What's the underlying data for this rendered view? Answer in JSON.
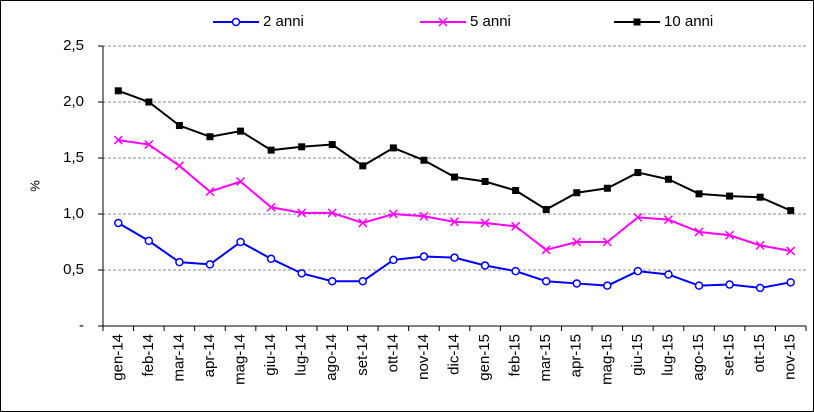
{
  "chart_data": {
    "type": "line",
    "ylabel": "%",
    "categories": [
      "gen-14",
      "feb-14",
      "mar-14",
      "apr-14",
      "mag-14",
      "giu-14",
      "lug-14",
      "ago-14",
      "set-14",
      "ott-14",
      "nov-14",
      "dic-14",
      "gen-15",
      "feb-15",
      "mar-15",
      "apr-15",
      "mag-15",
      "giu-15",
      "lug-15",
      "ago-15",
      "set-15",
      "ott-15",
      "nov-15"
    ],
    "series": [
      {
        "name": "2 anni",
        "color": "#0000ff",
        "marker": "circle",
        "values": [
          0.92,
          0.76,
          0.57,
          0.55,
          0.75,
          0.6,
          0.47,
          0.4,
          0.4,
          0.59,
          0.62,
          0.61,
          0.54,
          0.49,
          0.4,
          0.38,
          0.36,
          0.49,
          0.46,
          0.36,
          0.37,
          0.34,
          0.39
        ]
      },
      {
        "name": "5 anni",
        "color": "#ff00ff",
        "marker": "x",
        "values": [
          1.66,
          1.62,
          1.43,
          1.2,
          1.29,
          1.06,
          1.01,
          1.01,
          0.92,
          1.0,
          0.98,
          0.93,
          0.92,
          0.89,
          0.68,
          0.75,
          0.75,
          0.97,
          0.95,
          0.84,
          0.81,
          0.72,
          0.67
        ]
      },
      {
        "name": "10 anni",
        "color": "#000000",
        "marker": "square",
        "values": [
          2.1,
          2.0,
          1.79,
          1.69,
          1.74,
          1.57,
          1.6,
          1.62,
          1.43,
          1.59,
          1.48,
          1.33,
          1.29,
          1.21,
          1.04,
          1.19,
          1.23,
          1.37,
          1.31,
          1.18,
          1.16,
          1.15,
          1.03
        ]
      }
    ],
    "ylim": [
      0,
      2.5
    ],
    "yticks": [
      {
        "value": 0,
        "label": "-"
      },
      {
        "value": 0.5,
        "label": "0,5"
      },
      {
        "value": 1,
        "label": "1,0"
      },
      {
        "value": 1.5,
        "label": "1,5"
      },
      {
        "value": 2,
        "label": "2,0"
      },
      {
        "value": 2.5,
        "label": "2,5"
      }
    ],
    "grid": true,
    "legend": "top"
  }
}
